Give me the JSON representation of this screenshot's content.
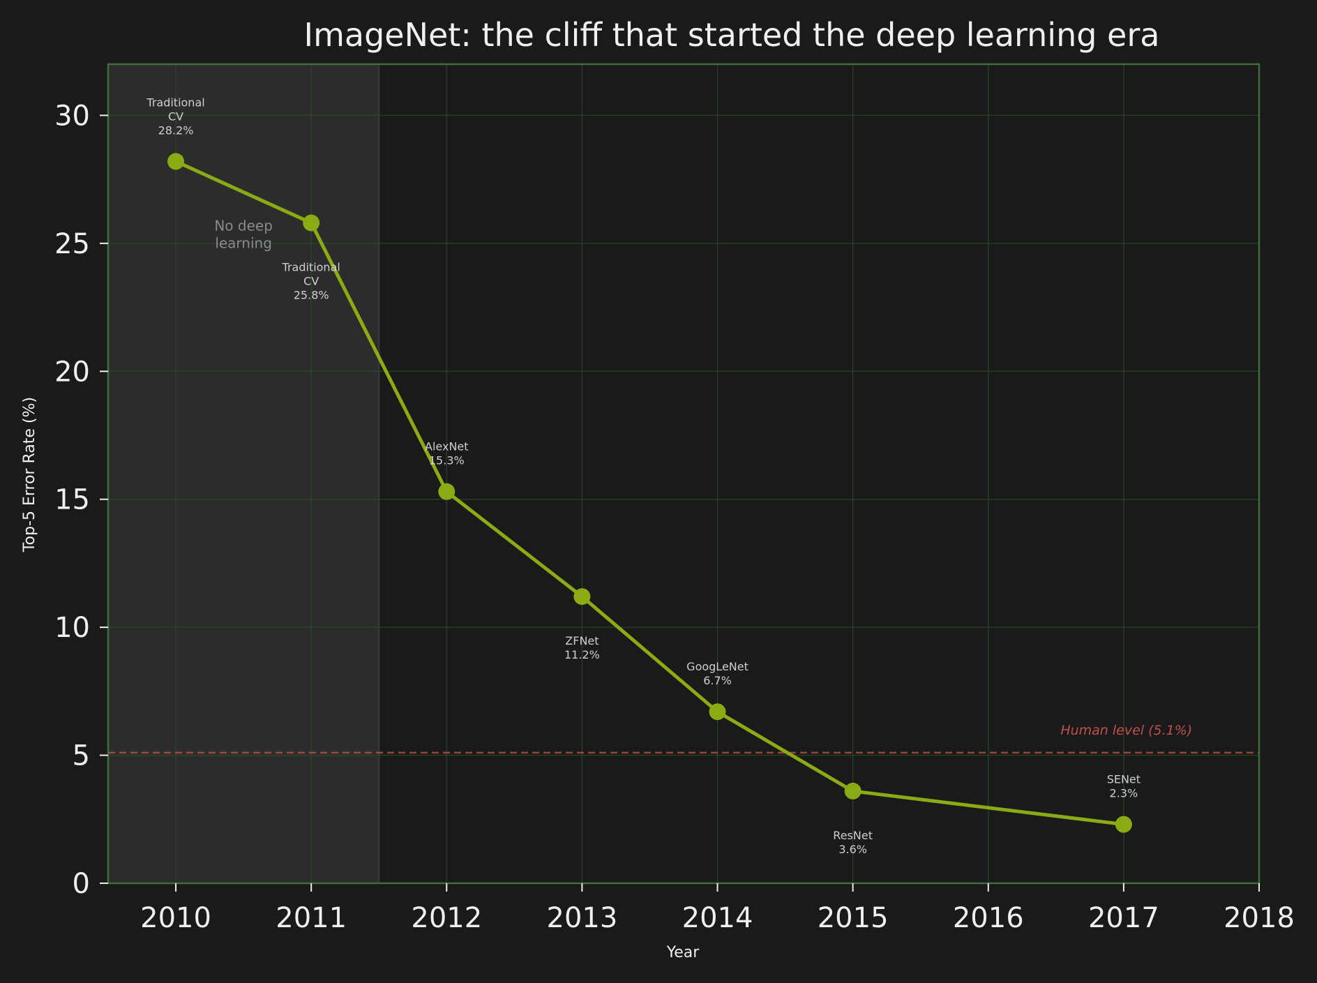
{
  "chart_data": {
    "type": "line",
    "title": "ImageNet: the cliff that started the deep learning era",
    "xlabel": "Year",
    "ylabel": "Top-5 Error Rate (%)",
    "xlim": [
      2009.5,
      2018
    ],
    "ylim": [
      0,
      32
    ],
    "xticks": [
      2010,
      2011,
      2012,
      2013,
      2014,
      2015,
      2016,
      2017,
      2018
    ],
    "yticks": [
      0,
      5,
      10,
      15,
      20,
      25,
      30
    ],
    "grid": true,
    "line_color": "#8aab14",
    "points": [
      {
        "x": 2010,
        "y": 28.2,
        "label": [
          "Traditional",
          "CV",
          "28.2%"
        ],
        "label_pos": "above"
      },
      {
        "x": 2011,
        "y": 25.8,
        "label": [
          "Traditional",
          "CV",
          "25.8%"
        ],
        "label_pos": "below"
      },
      {
        "x": 2012,
        "y": 15.3,
        "label": [
          "AlexNet",
          "15.3%"
        ],
        "label_pos": "above"
      },
      {
        "x": 2013,
        "y": 11.2,
        "label": [
          "ZFNet",
          "11.2%"
        ],
        "label_pos": "below"
      },
      {
        "x": 2014,
        "y": 6.7,
        "label": [
          "GoogLeNet",
          "6.7%"
        ],
        "label_pos": "above"
      },
      {
        "x": 2015,
        "y": 3.6,
        "label": [
          "ResNet",
          "3.6%"
        ],
        "label_pos": "below"
      },
      {
        "x": 2017,
        "y": 2.3,
        "label": [
          "SENet",
          "2.3%"
        ],
        "label_pos": "above"
      }
    ],
    "shaded_region": {
      "x_start": 2009.5,
      "x_end": 2011.5,
      "label": [
        "No deep",
        "learning"
      ]
    },
    "reference_line": {
      "y": 5.1,
      "label": "Human level (5.1%)",
      "color": "#c0504d"
    }
  }
}
